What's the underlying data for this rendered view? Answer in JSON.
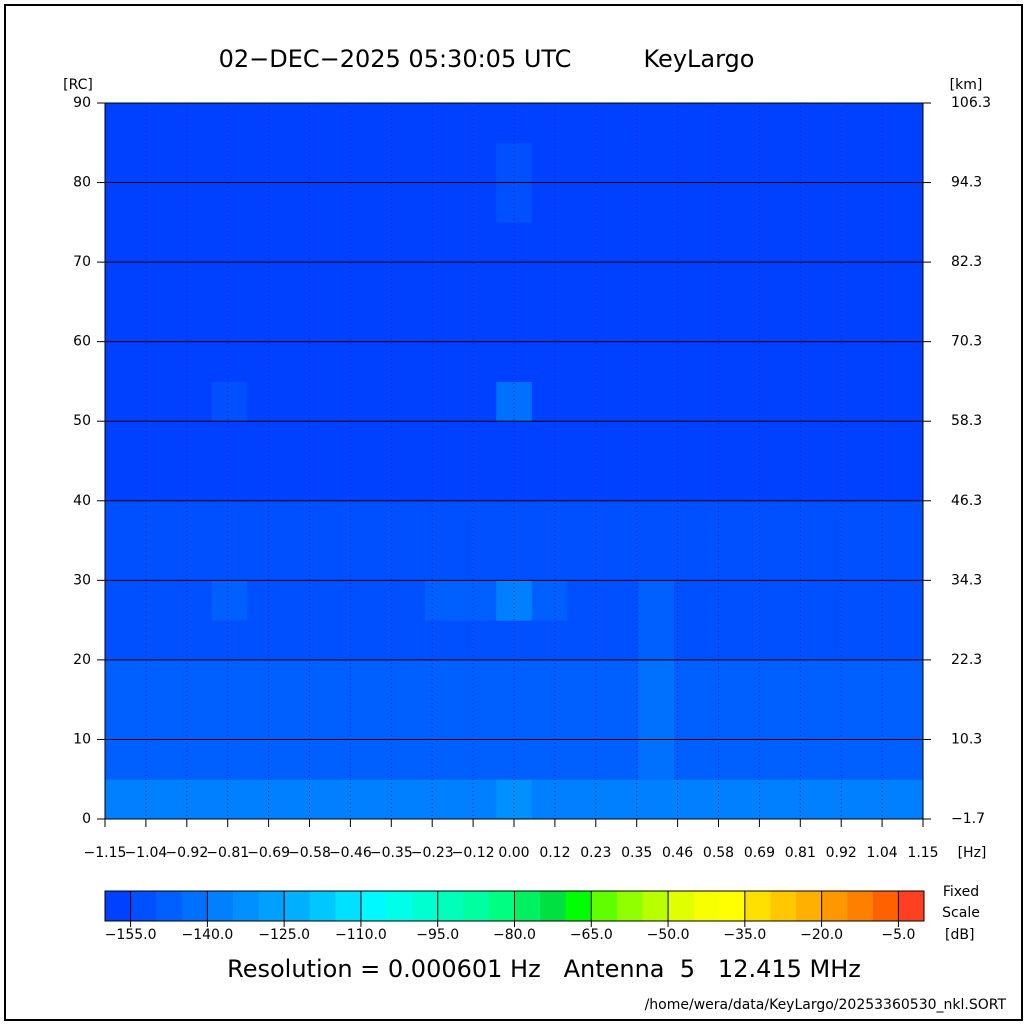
{
  "chart_data": {
    "type": "heatmap",
    "title": "02−DEC−2025 05:30:05 UTC",
    "site": "KeyLargo",
    "ylabel": "[RC]",
    "y2label": "[km]",
    "xlabel": "[Hz]",
    "xlim": [
      -1.15,
      1.15
    ],
    "ylim": [
      0,
      90
    ],
    "y2lim": [
      -1.7,
      106.3
    ],
    "xticks": [
      {
        "value": -1.15,
        "label": "−1.15"
      },
      {
        "value": -1.035,
        "label": "−1.04"
      },
      {
        "value": -0.92,
        "label": "−0.92"
      },
      {
        "value": -0.805,
        "label": "−0.81"
      },
      {
        "value": -0.69,
        "label": "−0.69"
      },
      {
        "value": -0.575,
        "label": "−0.58"
      },
      {
        "value": -0.46,
        "label": "−0.46"
      },
      {
        "value": -0.345,
        "label": "−0.35"
      },
      {
        "value": -0.23,
        "label": "−0.23"
      },
      {
        "value": -0.115,
        "label": "−0.12"
      },
      {
        "value": 0,
        "label": "0.00"
      },
      {
        "value": 0.115,
        "label": "0.12"
      },
      0.23,
      {
        "value": 0.345,
        "label": "0.35"
      },
      0.46,
      {
        "value": 0.575,
        "label": "0.58"
      },
      0.69,
      {
        "value": 0.805,
        "label": "0.81"
      },
      0.92,
      {
        "value": 1.035,
        "label": "1.04"
      },
      1.15
    ],
    "yticks": [
      0,
      10,
      20,
      30,
      40,
      50,
      60,
      70,
      80,
      90
    ],
    "y2ticks": [
      {
        "value": -1.7,
        "label": "−1.7"
      },
      10.3,
      22.3,
      34.3,
      46.3,
      58.3,
      70.3,
      82.3,
      94.3,
      106.3
    ],
    "grid": true,
    "z": [
      [
        -140,
        -140,
        -140,
        -140,
        -140,
        -140,
        -140,
        -140,
        -140,
        -140,
        -140,
        -132,
        -140,
        -140,
        -140,
        -138,
        -140,
        -140,
        -140,
        -140,
        -140,
        -140,
        -140
      ],
      [
        -147,
        -147,
        -147,
        -147,
        -147,
        -147,
        -147,
        -147,
        -147,
        -147,
        -147,
        -147,
        -147,
        -147,
        -147,
        -142,
        -147,
        -147,
        -147,
        -147,
        -147,
        -147,
        -147
      ],
      [
        -149,
        -149,
        -149,
        -149,
        -149,
        -149,
        -149,
        -149,
        -149,
        -149,
        -149,
        -149,
        -149,
        -149,
        -149,
        -144,
        -149,
        -149,
        -149,
        -149,
        -149,
        -149,
        -149
      ],
      [
        -150,
        -150,
        -150,
        -150,
        -150,
        -150,
        -150,
        -150,
        -150,
        -150,
        -150,
        -150,
        -150,
        -150,
        -150,
        -145,
        -150,
        -150,
        -150,
        -150,
        -150,
        -150,
        -150
      ],
      [
        -151,
        -151,
        -151,
        -151,
        -151,
        -151,
        -151,
        -151,
        -151,
        -151,
        -151,
        -151,
        -151,
        -151,
        -151,
        -147,
        -151,
        -151,
        -151,
        -151,
        -151,
        -151,
        -151
      ],
      [
        -151,
        -151,
        -151,
        -150,
        -151,
        -151,
        -151,
        -151,
        -151,
        -148,
        -148,
        -140,
        -148,
        -151,
        -151,
        -149,
        -151,
        -151,
        -151,
        -151,
        -151,
        -151,
        -151
      ],
      [
        -154,
        -154,
        -154,
        -154,
        -154,
        -154,
        -154,
        -154,
        -154,
        -154,
        -154,
        -154,
        -154,
        -154,
        -154,
        -153,
        -154,
        -154,
        -154,
        -154,
        -154,
        -154,
        -154
      ],
      [
        -155,
        -155,
        -155,
        -155,
        -155,
        -155,
        -155,
        -155,
        -155,
        -155,
        -155,
        -155,
        -155,
        -155,
        -155,
        -155,
        -155,
        -155,
        -155,
        -155,
        -155,
        -155,
        -155
      ],
      [
        -156,
        -156,
        -156,
        -156,
        -156,
        -156,
        -156,
        -156,
        -156,
        -156,
        -156,
        -156,
        -156,
        -156,
        -156,
        -156,
        -156,
        -156,
        -156,
        -156,
        -156,
        -156,
        -156
      ],
      [
        -157,
        -157,
        -157,
        -157,
        -157,
        -157,
        -157,
        -157,
        -157,
        -157,
        -157,
        -157,
        -157,
        -157,
        -157,
        -157,
        -157,
        -157,
        -157,
        -157,
        -157,
        -157,
        -157
      ],
      [
        -157,
        -157,
        -157,
        -152,
        -157,
        -157,
        -157,
        -157,
        -157,
        -157,
        -157,
        -145,
        -157,
        -157,
        -157,
        -157,
        -157,
        -157,
        -157,
        -157,
        -157,
        -157,
        -157
      ],
      [
        -157,
        -157,
        -157,
        -157,
        -157,
        -157,
        -157,
        -157,
        -157,
        -157,
        -157,
        -157,
        -157,
        -157,
        -157,
        -157,
        -157,
        -157,
        -157,
        -157,
        -157,
        -157,
        -157
      ],
      [
        -157,
        -157,
        -157,
        -157,
        -157,
        -157,
        -157,
        -157,
        -157,
        -157,
        -157,
        -157,
        -157,
        -157,
        -157,
        -157,
        -157,
        -157,
        -157,
        -157,
        -157,
        -157,
        -157
      ],
      [
        -157,
        -157,
        -157,
        -157,
        -157,
        -157,
        -157,
        -157,
        -157,
        -157,
        -157,
        -157,
        -157,
        -157,
        -157,
        -157,
        -157,
        -157,
        -157,
        -157,
        -157,
        -157,
        -157
      ],
      [
        -157,
        -157,
        -157,
        -157,
        -157,
        -157,
        -157,
        -157,
        -157,
        -157,
        -157,
        -157,
        -157,
        -157,
        -157,
        -157,
        -157,
        -157,
        -157,
        -157,
        -157,
        -157,
        -157
      ],
      [
        -157,
        -157,
        -157,
        -157,
        -157,
        -157,
        -157,
        -157,
        -157,
        -157,
        -157,
        -151,
        -157,
        -157,
        -157,
        -157,
        -157,
        -157,
        -157,
        -157,
        -157,
        -157,
        -157
      ],
      [
        -157,
        -157,
        -157,
        -157,
        -157,
        -157,
        -157,
        -157,
        -157,
        -157,
        -157,
        -151,
        -157,
        -157,
        -157,
        -157,
        -157,
        -157,
        -157,
        -157,
        -157,
        -157,
        -157
      ],
      [
        -157,
        -157,
        -157,
        -157,
        -157,
        -157,
        -157,
        -157,
        -157,
        -157,
        -157,
        -157,
        -157,
        -157,
        -157,
        -157,
        -157,
        -157,
        -157,
        -157,
        -157,
        -157,
        -157
      ]
    ],
    "colorbar": {
      "lim": [
        -160,
        0
      ],
      "colors": [
        "#0040ff",
        "#0050ff",
        "#0060ff",
        "#0070ff",
        "#0080ff",
        "#0090ff",
        "#00a0ff",
        "#00b0ff",
        "#00c8ff",
        "#00e0ff",
        "#00f8ff",
        "#00ffe8",
        "#00ffd0",
        "#00ffb8",
        "#00ffa0",
        "#00ff80",
        "#00f060",
        "#00e040",
        "#00ff00",
        "#60ff00",
        "#90ff00",
        "#b8ff00",
        "#e0ff00",
        "#f8ff00",
        "#ffff00",
        "#ffe000",
        "#ffc800",
        "#ffb000",
        "#ff9800",
        "#ff8000",
        "#ff6000",
        "#ff4020"
      ],
      "ticks": [
        {
          "value": -155,
          "label": "−155.0"
        },
        {
          "value": -140,
          "label": "−140.0"
        },
        {
          "value": -125,
          "label": "−125.0"
        },
        {
          "value": -110,
          "label": "−110.0"
        },
        {
          "value": -95,
          "label": "−95.0"
        },
        {
          "value": -80,
          "label": "−80.0"
        },
        {
          "value": -65,
          "label": "−65.0"
        },
        {
          "value": -50,
          "label": "−50.0"
        },
        {
          "value": -35,
          "label": "−35.0"
        },
        {
          "value": -20,
          "label": "−20.0"
        },
        {
          "value": -5,
          "label": "−5.0"
        }
      ],
      "label": "[dB]",
      "note": "Fixed Scale"
    },
    "footer": "Resolution = 0.000601 Hz   Antenna  5   12.415 MHz",
    "file": "/home/wera/data/KeyLargo/20253360530_nkl.SORT"
  }
}
